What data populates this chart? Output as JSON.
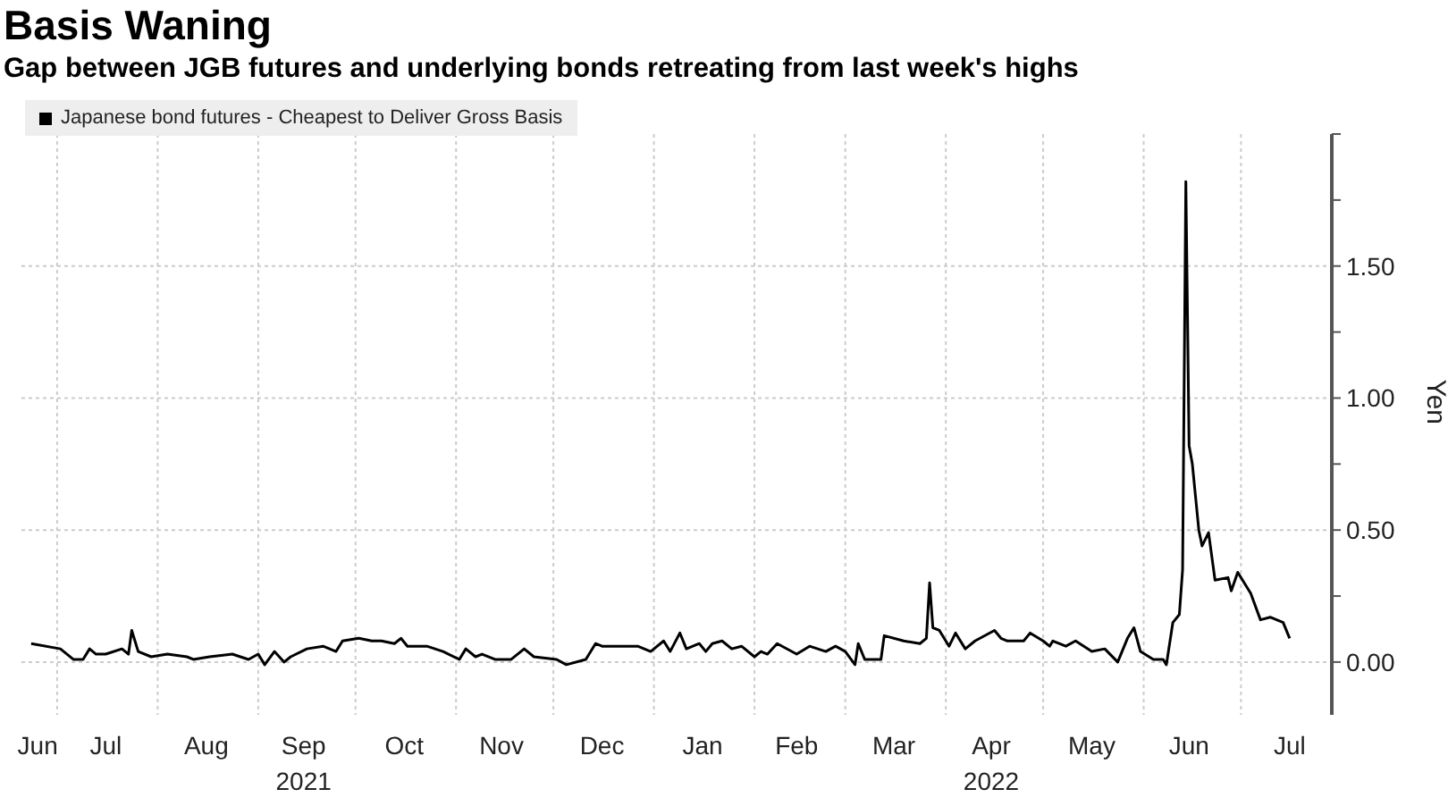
{
  "chart_data": {
    "type": "line",
    "title": "Basis Waning",
    "subtitle": "Gap between JGB futures and underlying bonds retreating from last week's highs",
    "ylabel": "Yen",
    "x": [
      "2021-06-23",
      "2021-07-02",
      "2021-07-06",
      "2021-07-09",
      "2021-07-11",
      "2021-07-13",
      "2021-07-16",
      "2021-07-21",
      "2021-07-23",
      "2021-07-24",
      "2021-07-26",
      "2021-07-30",
      "2021-08-04",
      "2021-08-10",
      "2021-08-12",
      "2021-08-17",
      "2021-08-24",
      "2021-08-29",
      "2021-09-01",
      "2021-09-03",
      "2021-09-06",
      "2021-09-09",
      "2021-09-11",
      "2021-09-16",
      "2021-09-21",
      "2021-09-25",
      "2021-09-27",
      "2021-10-02",
      "2021-10-06",
      "2021-10-09",
      "2021-10-13",
      "2021-10-15",
      "2021-10-17",
      "2021-10-23",
      "2021-10-28",
      "2021-11-02",
      "2021-11-04",
      "2021-11-07",
      "2021-11-09",
      "2021-11-13",
      "2021-11-18",
      "2021-11-22",
      "2021-11-25",
      "2021-12-02",
      "2021-12-05",
      "2021-12-11",
      "2021-12-14",
      "2021-12-16",
      "2021-12-27",
      "2021-12-31",
      "2022-01-04",
      "2022-01-06",
      "2022-01-09",
      "2022-01-11",
      "2022-01-15",
      "2022-01-17",
      "2022-01-19",
      "2022-01-22",
      "2022-01-25",
      "2022-01-28",
      "2022-02-01",
      "2022-02-03",
      "2022-02-05",
      "2022-02-08",
      "2022-02-14",
      "2022-02-18",
      "2022-02-23",
      "2022-02-26",
      "2022-03-01",
      "2022-03-04",
      "2022-03-05",
      "2022-03-07",
      "2022-03-09",
      "2022-03-12",
      "2022-03-13",
      "2022-03-19",
      "2022-03-24",
      "2022-03-26",
      "2022-03-27",
      "2022-03-28",
      "2022-03-30",
      "2022-04-02",
      "2022-04-04",
      "2022-04-07",
      "2022-04-10",
      "2022-04-16",
      "2022-04-18",
      "2022-04-20",
      "2022-04-25",
      "2022-04-27",
      "2022-05-01",
      "2022-05-03",
      "2022-05-04",
      "2022-05-08",
      "2022-05-11",
      "2022-05-16",
      "2022-05-20",
      "2022-05-24",
      "2022-05-27",
      "2022-05-29",
      "2022-05-31",
      "2022-06-04",
      "2022-06-07",
      "2022-06-08",
      "2022-06-10",
      "2022-06-12",
      "2022-06-13",
      "2022-06-14",
      "2022-06-15",
      "2022-06-16",
      "2022-06-18",
      "2022-06-19",
      "2022-06-21",
      "2022-06-23",
      "2022-06-27",
      "2022-06-28",
      "2022-06-30",
      "2022-07-04",
      "2022-07-07",
      "2022-07-10",
      "2022-07-14",
      "2022-07-16"
    ],
    "series": [
      {
        "name": "Japanese bond futures - Cheapest to Deliver Gross Basis",
        "color": "#000000",
        "values": [
          0.07,
          0.05,
          0.01,
          0.01,
          0.05,
          0.03,
          0.03,
          0.05,
          0.03,
          0.12,
          0.04,
          0.02,
          0.03,
          0.02,
          0.01,
          0.02,
          0.03,
          0.01,
          0.03,
          -0.01,
          0.04,
          0.0,
          0.02,
          0.05,
          0.06,
          0.04,
          0.08,
          0.09,
          0.08,
          0.08,
          0.07,
          0.09,
          0.06,
          0.06,
          0.04,
          0.01,
          0.05,
          0.02,
          0.03,
          0.01,
          0.01,
          0.05,
          0.02,
          0.01,
          -0.01,
          0.01,
          0.07,
          0.06,
          0.06,
          0.04,
          0.08,
          0.04,
          0.11,
          0.05,
          0.07,
          0.04,
          0.07,
          0.08,
          0.05,
          0.06,
          0.02,
          0.04,
          0.03,
          0.07,
          0.03,
          0.06,
          0.04,
          0.06,
          0.04,
          -0.01,
          0.07,
          0.01,
          0.01,
          0.01,
          0.1,
          0.08,
          0.07,
          0.09,
          0.3,
          0.13,
          0.12,
          0.06,
          0.11,
          0.05,
          0.08,
          0.12,
          0.09,
          0.08,
          0.08,
          0.11,
          0.08,
          0.06,
          0.08,
          0.06,
          0.08,
          0.04,
          0.05,
          0.0,
          0.09,
          0.13,
          0.04,
          0.01,
          0.01,
          -0.01,
          0.15,
          0.18,
          0.35,
          1.82,
          0.82,
          0.75,
          0.5,
          0.44,
          0.49,
          0.31,
          0.32,
          0.27,
          0.34,
          0.26,
          0.16,
          0.17,
          0.15,
          0.09
        ]
      }
    ],
    "xlim": [
      "2021-06-20",
      "2022-07-29"
    ],
    "xticks": [
      {
        "value": "2021-06-25",
        "label": "Jun"
      },
      {
        "value": "2021-07-16",
        "label": "Jul"
      },
      {
        "value": "2021-08-16",
        "label": "Aug"
      },
      {
        "value": "2021-09-15",
        "label": "Sep\n2021"
      },
      {
        "value": "2021-10-16",
        "label": "Oct"
      },
      {
        "value": "2021-11-15",
        "label": "Nov"
      },
      {
        "value": "2021-12-16",
        "label": "Dec"
      },
      {
        "value": "2022-01-16",
        "label": "Jan"
      },
      {
        "value": "2022-02-14",
        "label": "Feb"
      },
      {
        "value": "2022-03-16",
        "label": "Mar"
      },
      {
        "value": "2022-04-15",
        "label": "Apr\n2022"
      },
      {
        "value": "2022-05-16",
        "label": "May"
      },
      {
        "value": "2022-06-15",
        "label": "Jun"
      },
      {
        "value": "2022-07-16",
        "label": "Jul"
      },
      {
        "value": "2021-07-01",
        "label": null
      },
      {
        "value": "2021-08-01",
        "label": null
      },
      {
        "value": "2021-09-01",
        "label": null
      },
      {
        "value": "2021-10-01",
        "label": null
      },
      {
        "value": "2021-11-01",
        "label": null
      },
      {
        "value": "2021-12-01",
        "label": null
      },
      {
        "value": "2022-01-01",
        "label": null
      },
      {
        "value": "2022-02-01",
        "label": null
      },
      {
        "value": "2022-03-01",
        "label": null
      },
      {
        "value": "2022-04-01",
        "label": null
      },
      {
        "value": "2022-05-01",
        "label": null
      },
      {
        "value": "2022-06-01",
        "label": null
      },
      {
        "value": "2022-07-01",
        "label": null
      }
    ],
    "ylim": [
      -0.2,
      2.0
    ],
    "yticks": [
      {
        "value": 0,
        "label": "0.00"
      },
      {
        "value": 0.25,
        "label": null
      },
      {
        "value": 0.5,
        "label": "0.50"
      },
      {
        "value": 0.75,
        "label": null
      },
      {
        "value": 1,
        "label": "1.00"
      },
      {
        "value": 1.25,
        "label": null
      },
      {
        "value": 1.5,
        "label": "1.50"
      },
      {
        "value": 1.75,
        "label": null
      },
      {
        "value": 2,
        "label": null
      }
    ],
    "grid": true,
    "legend": "top left",
    "marker": "none",
    "line_style": "solid"
  }
}
